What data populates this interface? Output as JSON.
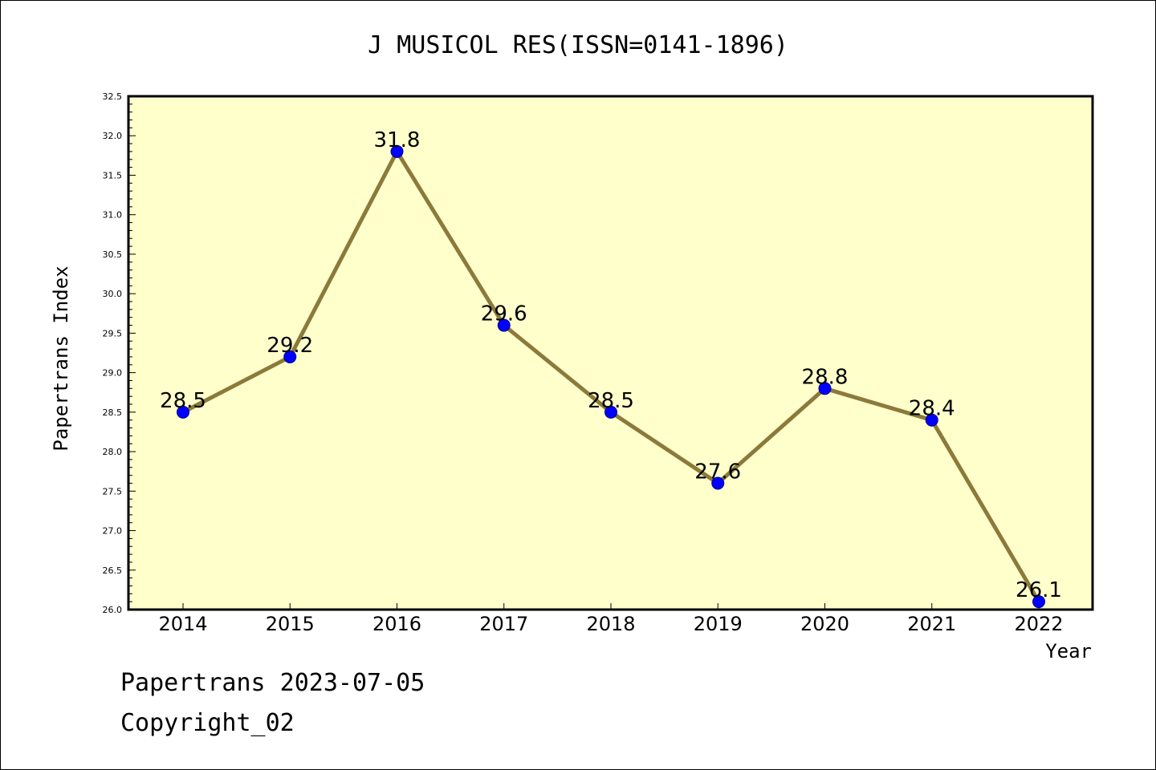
{
  "chart_data": {
    "type": "line",
    "title": "J MUSICOL RES(ISSN=0141-1896)",
    "xlabel": "Year",
    "ylabel": "Papertrans Index",
    "categories": [
      "2014",
      "2015",
      "2016",
      "2017",
      "2018",
      "2019",
      "2020",
      "2021",
      "2022"
    ],
    "series": [
      {
        "values": [
          28.5,
          29.2,
          31.8,
          29.6,
          28.5,
          27.6,
          28.8,
          28.4,
          26.1
        ]
      }
    ],
    "data_labels": [
      "28.5",
      "29.2",
      "31.8",
      "29.6",
      "28.5",
      "27.6",
      "28.8",
      "28.4",
      "26.1"
    ],
    "ylim": [
      26.0,
      32.5
    ],
    "yticks": [
      "26.0",
      "26.5",
      "27.0",
      "27.5",
      "28.0",
      "28.5",
      "29.0",
      "29.5",
      "30.0",
      "30.5",
      "31.0",
      "31.5",
      "32.0",
      "32.5"
    ],
    "grid": false,
    "legend": "none",
    "colors": {
      "plot_background": "#ffffcc",
      "line": "#8b7a3a",
      "marker": "#0000ff",
      "axis": "#000000"
    }
  },
  "footer": {
    "line1": "Papertrans 2023-07-05",
    "line2": "Copyright_02"
  }
}
